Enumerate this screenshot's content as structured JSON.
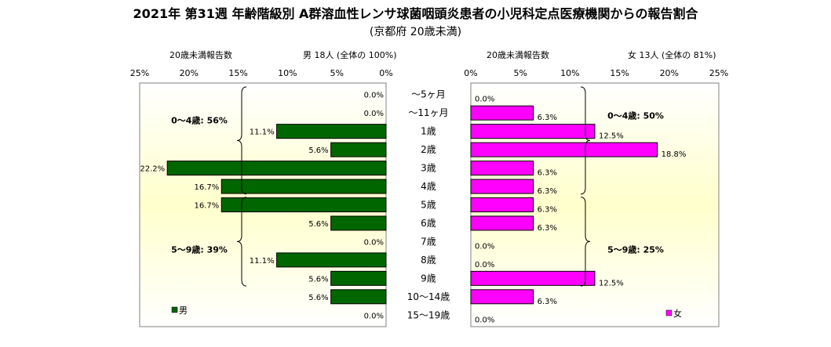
{
  "title": "2021年 第31週 年齢階級別 A群溶血性レンサ球菌咽頭炎患者の小児科定点医療機関からの報告割合",
  "subtitle": "(京都府 20歳未満)",
  "colors": {
    "male": "#006600",
    "female": "#ff00ff",
    "panel_top": "#ffffff",
    "panel_mid": "#ffffcc"
  },
  "chart_data": {
    "type": "bar",
    "orientation": "horizontal",
    "categories": [
      "〜5ヶ月",
      "〜11ヶ月",
      "1歳",
      "2歳",
      "3歳",
      "4歳",
      "5歳",
      "6歳",
      "7歳",
      "8歳",
      "9歳",
      "10〜14歳",
      "15〜19歳"
    ],
    "xlim": [
      0,
      25
    ],
    "x_ticks": [
      "0%",
      "5%",
      "10%",
      "15%",
      "20%",
      "25%"
    ],
    "male": {
      "header_label": "20歳未満報告数",
      "summary": "男  18人 (全体の  100%)",
      "legend": "男",
      "values": [
        0.0,
        0.0,
        11.1,
        5.6,
        22.2,
        16.7,
        16.7,
        5.6,
        0.0,
        11.1,
        5.6,
        5.6,
        0.0
      ],
      "value_labels": [
        "0.0%",
        "0.0%",
        "11.1%",
        "5.6%",
        "22.2%",
        "16.7%",
        "16.7%",
        "5.6%",
        "0.0%",
        "11.1%",
        "5.6%",
        "5.6%",
        "0.0%"
      ],
      "groups": [
        {
          "label": "0〜4歳: 56%",
          "from": 0,
          "to": 5
        },
        {
          "label": "5〜9歳: 39%",
          "from": 6,
          "to": 10
        }
      ]
    },
    "female": {
      "header_label": "20歳未満報告数",
      "summary": "女  13人 (全体の  81%)",
      "legend": "女",
      "values": [
        0.0,
        6.3,
        12.5,
        18.8,
        6.3,
        6.3,
        6.3,
        6.3,
        0.0,
        0.0,
        12.5,
        6.3,
        0.0
      ],
      "value_labels": [
        "0.0%",
        "6.3%",
        "12.5%",
        "18.8%",
        "6.3%",
        "6.3%",
        "6.3%",
        "6.3%",
        "0.0%",
        "0.0%",
        "12.5%",
        "6.3%",
        "0.0%"
      ],
      "groups": [
        {
          "label": "0〜4歳: 50%",
          "from": 0,
          "to": 5
        },
        {
          "label": "5〜9歳: 25%",
          "from": 6,
          "to": 10
        }
      ]
    }
  }
}
